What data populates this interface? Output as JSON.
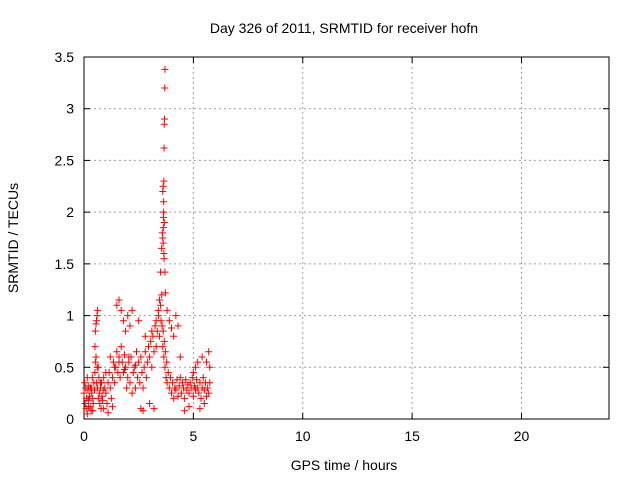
{
  "chart_data": {
    "type": "scatter",
    "title": "Day 326 of 2011, SRMTID for receiver hofn",
    "xlabel": "GPS time / hours",
    "ylabel": "SRMTID / TECUs",
    "xlim": [
      0,
      24
    ],
    "ylim": [
      0,
      3.5
    ],
    "xticks": [
      0,
      5,
      10,
      15,
      20
    ],
    "xtick_labels": [
      "0",
      "5",
      "10",
      "15",
      "20"
    ],
    "yticks": [
      0,
      0.5,
      1,
      1.5,
      2,
      2.5,
      3,
      3.5
    ],
    "ytick_labels": [
      "0",
      "0.5",
      "1",
      "1.5",
      "2",
      "2.5",
      "3",
      "3.5"
    ],
    "grid": true,
    "marker": "plus",
    "color": "#ff0000",
    "series": [
      {
        "x": [
          0.0,
          0.03,
          0.05,
          0.08,
          0.1,
          0.12,
          0.15,
          0.18,
          0.2,
          0.22,
          0.25,
          0.28,
          0.3,
          0.33,
          0.35,
          0.38,
          0.4,
          0.42,
          0.45,
          0.48,
          0.5,
          0.52,
          0.55,
          0.58,
          0.6,
          0.62,
          0.65,
          0.68,
          0.7,
          0.72,
          0.75,
          0.78,
          0.8,
          0.82,
          0.85,
          0.88,
          0.9,
          0.95,
          1.0,
          1.05,
          1.1,
          1.15,
          1.2,
          1.25,
          1.3,
          1.35,
          1.4,
          1.45,
          1.5,
          1.55,
          1.6,
          1.65,
          1.7,
          1.75,
          1.8,
          1.85,
          1.9,
          1.95,
          2.0,
          2.05,
          2.1,
          2.15,
          2.2,
          2.25,
          2.3,
          2.35,
          2.4,
          2.45,
          2.5,
          2.55,
          2.6,
          2.65,
          2.7,
          2.75,
          2.8,
          2.85,
          2.9,
          2.95,
          3.0,
          3.05,
          3.1,
          3.15,
          3.2,
          3.25,
          3.3,
          3.35,
          3.4,
          3.45,
          3.5,
          3.52,
          3.55,
          3.57,
          3.6,
          3.62,
          3.65,
          3.67,
          3.7,
          3.72,
          3.75,
          3.78,
          3.8,
          3.85,
          3.9,
          3.95,
          4.0,
          4.05,
          4.1,
          4.15,
          4.2,
          4.25,
          4.3,
          4.35,
          4.4,
          4.45,
          4.5,
          4.55,
          4.6,
          4.65,
          4.7,
          4.75,
          4.8,
          4.85,
          4.9,
          4.95,
          5.0,
          5.05,
          5.1,
          5.15,
          5.2,
          5.25,
          5.3,
          5.35,
          5.4,
          5.45,
          5.5,
          5.55,
          5.6,
          5.65,
          5.7,
          5.75,
          0.55,
          0.57,
          0.6,
          0.62,
          0.5,
          0.52,
          1.5,
          1.6,
          1.7,
          1.8,
          1.9,
          2.0,
          2.1,
          2.2,
          2.5,
          2.8,
          3.1,
          3.3,
          3.4,
          3.45,
          3.5,
          3.55,
          3.58,
          3.6,
          3.62,
          3.63,
          3.64,
          3.65,
          3.66,
          3.67,
          3.68,
          3.69,
          3.7,
          3.6,
          3.65,
          3.62,
          3.66,
          3.63,
          3.67,
          3.64,
          3.7,
          3.72,
          3.8,
          3.9,
          4.0,
          4.1,
          4.2,
          4.3,
          4.4,
          5.0,
          5.1,
          5.2,
          5.4,
          5.6,
          5.7,
          5.75,
          0.2,
          0.4,
          0.9,
          1.1,
          1.3,
          2.6,
          2.7,
          3.0,
          3.2,
          4.6,
          4.8,
          5.3,
          5.5,
          0.15,
          0.35,
          0.65,
          0.75,
          1.0,
          1.2,
          1.4,
          1.6,
          1.85,
          2.05,
          2.35
        ],
        "y": [
          0.25,
          0.35,
          0.15,
          0.3,
          0.1,
          0.2,
          0.05,
          0.28,
          0.18,
          0.32,
          0.22,
          0.12,
          0.3,
          0.08,
          0.25,
          0.4,
          0.2,
          0.15,
          0.35,
          0.28,
          0.45,
          0.55,
          0.6,
          0.35,
          0.5,
          0.3,
          0.2,
          0.4,
          0.25,
          0.15,
          0.3,
          0.1,
          0.35,
          0.22,
          0.18,
          0.28,
          0.4,
          0.3,
          0.25,
          0.15,
          0.35,
          0.45,
          0.3,
          0.2,
          0.4,
          0.55,
          0.35,
          0.5,
          0.65,
          0.45,
          0.6,
          0.4,
          0.7,
          0.55,
          0.45,
          0.62,
          0.5,
          0.3,
          0.4,
          0.55,
          0.35,
          0.6,
          0.25,
          0.45,
          0.5,
          0.3,
          0.65,
          0.4,
          0.55,
          0.35,
          0.6,
          0.45,
          0.3,
          0.5,
          0.65,
          0.4,
          0.55,
          0.7,
          0.6,
          0.75,
          0.5,
          0.8,
          0.65,
          0.9,
          0.7,
          0.85,
          1.0,
          0.8,
          1.1,
          0.95,
          1.2,
          0.9,
          0.7,
          0.85,
          0.6,
          0.75,
          0.5,
          0.65,
          0.4,
          0.55,
          0.35,
          0.45,
          0.3,
          0.4,
          0.25,
          0.35,
          0.2,
          0.3,
          0.28,
          0.38,
          0.22,
          0.32,
          0.4,
          0.25,
          0.35,
          0.3,
          0.2,
          0.38,
          0.28,
          0.33,
          0.25,
          0.35,
          0.3,
          0.4,
          0.22,
          0.32,
          0.28,
          0.38,
          0.3,
          0.25,
          0.35,
          0.2,
          0.3,
          0.4,
          0.28,
          0.35,
          0.22,
          0.3,
          0.25,
          0.35,
          0.92,
          0.95,
          1.0,
          1.05,
          0.7,
          0.85,
          1.1,
          1.15,
          1.05,
          0.95,
          0.85,
          1.0,
          0.9,
          1.05,
          0.95,
          0.8,
          0.85,
          0.95,
          1.05,
          1.15,
          1.42,
          1.65,
          1.8,
          2.2,
          2.25,
          1.95,
          2.1,
          2.3,
          2.62,
          2.85,
          2.9,
          3.2,
          3.38,
          1.75,
          1.6,
          1.7,
          1.55,
          1.85,
          1.9,
          2.0,
          1.42,
          1.22,
          1.05,
          0.95,
          0.88,
          0.8,
          1.0,
          0.9,
          0.6,
          0.45,
          0.5,
          0.55,
          0.6,
          0.55,
          0.65,
          0.5,
          0.12,
          0.08,
          0.1,
          0.06,
          0.12,
          0.1,
          0.08,
          0.15,
          0.1,
          0.08,
          0.12,
          0.1,
          0.15,
          0.4,
          0.3,
          0.5,
          0.35,
          0.45,
          0.6,
          0.5,
          0.55,
          0.48,
          0.6,
          0.52
        ]
      }
    ]
  }
}
